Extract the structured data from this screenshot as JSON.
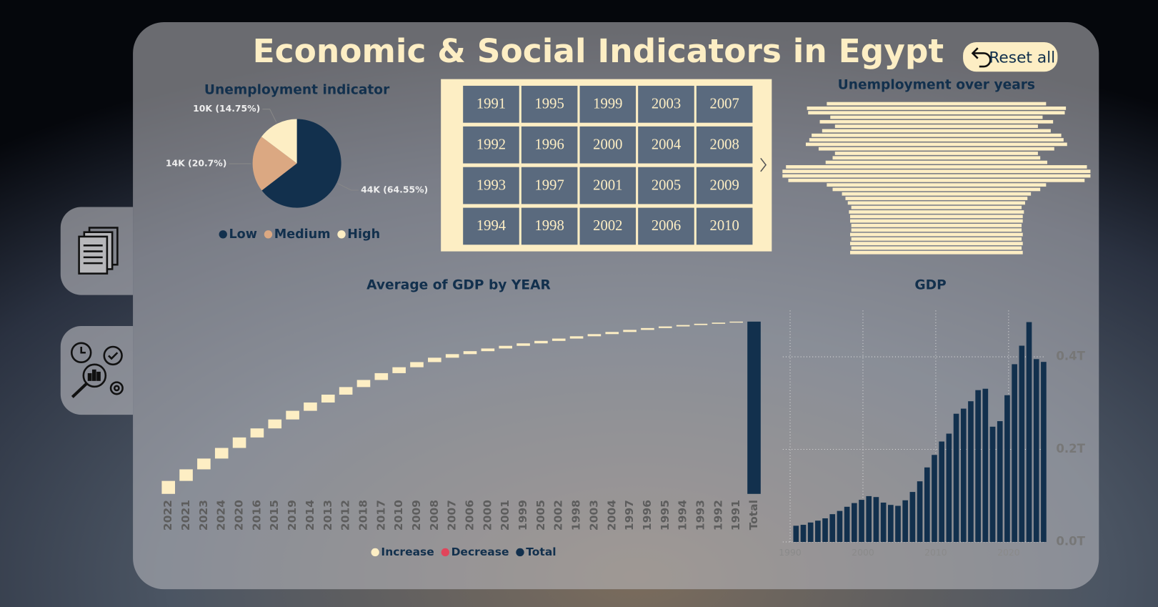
{
  "title": "Economic & Social Indicators in Egypt",
  "reset_button": "Reset all",
  "year_slicer": {
    "years": [
      1991,
      1992,
      1993,
      1994,
      1995,
      1996,
      1997,
      1998,
      1999,
      2000,
      2001,
      2002,
      2003,
      2004,
      2005,
      2006,
      2007,
      2008,
      2009,
      2010
    ]
  },
  "chart_data": [
    {
      "type": "pie",
      "title": "Unemployment indicator",
      "categories": [
        "Low",
        "Medium",
        "High"
      ],
      "values": [
        64.55,
        20.7,
        14.75
      ],
      "value_labels": [
        "44K (64.55%)",
        "14K (20.7%)",
        "10K (14.75%)"
      ],
      "colors": [
        "#12304d",
        "#dba882",
        "#fdeec4"
      ]
    },
    {
      "type": "funnel",
      "title": "Unemployment over years",
      "color": "#fdeec4",
      "values": [
        9.4,
        11.1,
        11.0,
        9.1,
        10.0,
        8.7,
        9.8,
        10.7,
        10.9,
        11.2,
        10.1,
        8.7,
        8.9,
        9.5,
        12.9,
        13.2,
        13.2,
        12.7,
        9.4,
        8.9,
        8.1,
        7.8,
        7.6,
        7.3,
        7.5,
        7.4,
        7.4,
        7.3,
        7.3,
        7.4,
        7.3,
        7.4,
        7.3,
        7.4
      ]
    },
    {
      "type": "waterfall",
      "title": "Average of GDP by YEAR",
      "categories": [
        "2022",
        "2021",
        "2023",
        "2024",
        "2020",
        "2016",
        "2015",
        "2019",
        "2014",
        "2013",
        "2012",
        "2018",
        "2017",
        "2010",
        "2009",
        "2008",
        "2007",
        "2006",
        "2000",
        "2001",
        "1999",
        "2005",
        "2002",
        "1998",
        "2003",
        "2004",
        "1997",
        "1996",
        "1995",
        "1994",
        "1993",
        "1992",
        "1991"
      ],
      "values": [
        0.475,
        0.424,
        0.395,
        0.389,
        0.384,
        0.331,
        0.328,
        0.317,
        0.304,
        0.288,
        0.277,
        0.261,
        0.249,
        0.217,
        0.188,
        0.161,
        0.131,
        0.108,
        0.099,
        0.097,
        0.091,
        0.09,
        0.085,
        0.084,
        0.08,
        0.078,
        0.076,
        0.067,
        0.06,
        0.051,
        0.046,
        0.042,
        0.037
      ],
      "total_label": "Total",
      "total": 6.31,
      "legend": [
        {
          "name": "Increase",
          "color": "#fdeec4"
        },
        {
          "name": "Decrease",
          "color": "#e0455b"
        },
        {
          "name": "Total",
          "color": "#12304d"
        }
      ]
    },
    {
      "type": "bar",
      "title": "GDP",
      "color": "#12304d",
      "grid": true,
      "x": [
        1990,
        1991,
        1992,
        1993,
        1994,
        1995,
        1996,
        1997,
        1998,
        1999,
        2000,
        2001,
        2002,
        2003,
        2004,
        2005,
        2006,
        2007,
        2008,
        2009,
        2010,
        2011,
        2012,
        2013,
        2014,
        2015,
        2016,
        2017,
        2018,
        2019,
        2020,
        2021,
        2022,
        2023,
        2024
      ],
      "values": [
        0.035,
        0.037,
        0.042,
        0.046,
        0.051,
        0.06,
        0.067,
        0.076,
        0.084,
        0.091,
        0.099,
        0.097,
        0.085,
        0.08,
        0.078,
        0.09,
        0.108,
        0.131,
        0.161,
        0.188,
        0.217,
        0.234,
        0.277,
        0.288,
        0.304,
        0.328,
        0.331,
        0.249,
        0.261,
        0.317,
        0.384,
        0.424,
        0.475,
        0.395,
        0.389
      ],
      "xlim": [
        1989,
        2025
      ],
      "xticks": [
        1990,
        2000,
        2010,
        2020
      ],
      "ylim": [
        0,
        0.5
      ],
      "yticks": [
        {
          "value": 0,
          "label": "0.0T"
        },
        {
          "value": 0.2,
          "label": "0.2T"
        },
        {
          "value": 0.4,
          "label": "0.4T"
        }
      ]
    }
  ]
}
